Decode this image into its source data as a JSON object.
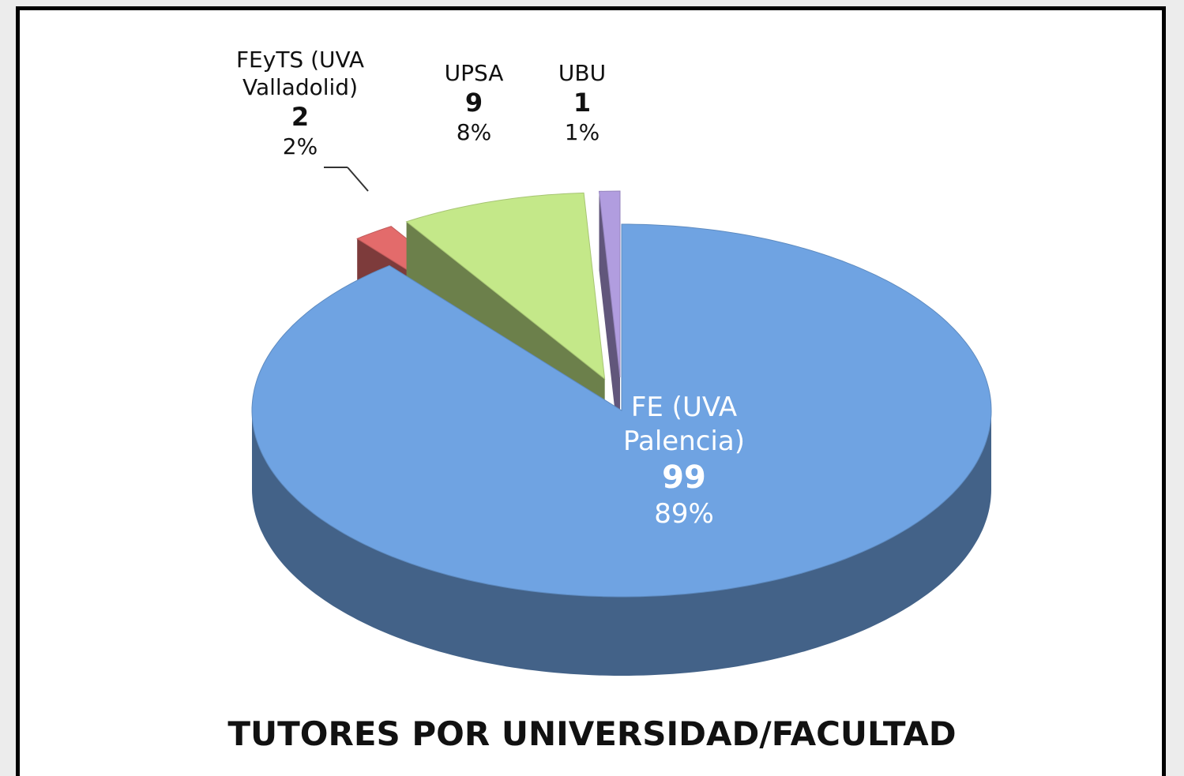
{
  "chart_data": {
    "type": "pie3d",
    "title": "TUTORES POR UNIVERSIDAD/FACULTAD",
    "categories": [
      "FE (UVA Palencia)",
      "FEyTS (UVA Valladolid)",
      "UPSA",
      "UBU"
    ],
    "values": [
      99,
      2,
      9,
      1
    ],
    "percent_labels": [
      "89%",
      "2%",
      "8%",
      "1%"
    ],
    "colors": [
      "#6fa3e2",
      "#e36b6b",
      "#c4e889",
      "#b19ddf"
    ]
  }
}
